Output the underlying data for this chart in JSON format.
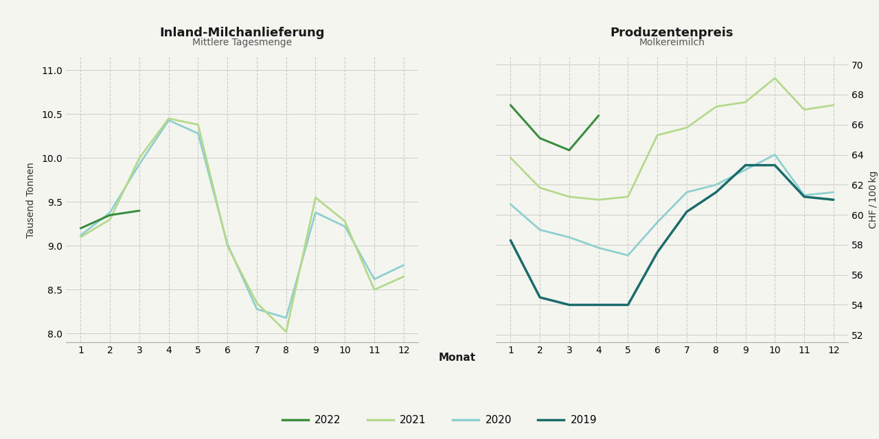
{
  "left_title": "Inland-Milchanlieferung",
  "left_subtitle": "Mittlere Tagesmenge",
  "right_title": "Produzentenpreis",
  "right_subtitle": "Molkereimilch",
  "xlabel": "Monat",
  "left_ylabel": "Tausend Tonnen",
  "right_ylabel": "CHF / 100 kg",
  "left_ylim": [
    7.9,
    11.15
  ],
  "left_yticks": [
    8.0,
    8.5,
    9.0,
    9.5,
    10.0,
    10.5,
    11.0
  ],
  "right_ylim": [
    51.5,
    70.5
  ],
  "right_yticks": [
    52,
    54,
    56,
    58,
    60,
    62,
    64,
    66,
    68,
    70
  ],
  "months": [
    1,
    2,
    3,
    4,
    5,
    6,
    7,
    8,
    9,
    10,
    11,
    12
  ],
  "left_series": {
    "2022": {
      "months": [
        1,
        2,
        3
      ],
      "values": [
        9.2,
        9.35,
        9.4
      ],
      "color": "#3a8c3f",
      "linewidth": 2.2
    },
    "2021": {
      "months": [
        1,
        2,
        3,
        4,
        5,
        6,
        7,
        8,
        9,
        10,
        11,
        12
      ],
      "values": [
        9.1,
        9.3,
        10.0,
        10.45,
        10.38,
        9.0,
        8.35,
        8.02,
        9.55,
        9.28,
        8.5,
        8.65
      ],
      "color": "#b5d98a",
      "linewidth": 2.0
    },
    "2020": {
      "months": [
        1,
        2,
        3,
        4,
        5,
        6,
        7,
        8,
        9,
        10,
        11,
        12
      ],
      "values": [
        9.12,
        9.38,
        9.93,
        10.43,
        10.28,
        9.02,
        8.28,
        8.18,
        9.38,
        9.22,
        8.62,
        8.78
      ],
      "color": "#8ecfcf",
      "linewidth": 2.0
    }
  },
  "right_series": {
    "2022": {
      "months": [
        1,
        2,
        3,
        4
      ],
      "values": [
        67.3,
        65.1,
        64.3,
        66.6
      ],
      "color": "#3a8c3f",
      "linewidth": 2.2
    },
    "2021": {
      "months": [
        1,
        2,
        3,
        4,
        5,
        6,
        7,
        8,
        9,
        10,
        11,
        12
      ],
      "values": [
        63.8,
        61.8,
        61.2,
        61.0,
        61.2,
        65.3,
        65.8,
        67.2,
        67.5,
        69.1,
        67.0,
        67.3
      ],
      "color": "#b5d98a",
      "linewidth": 2.0
    },
    "2020": {
      "months": [
        1,
        2,
        3,
        4,
        5,
        6,
        7,
        8,
        9,
        10,
        11,
        12
      ],
      "values": [
        60.7,
        59.0,
        58.5,
        57.8,
        57.3,
        59.5,
        61.5,
        62.0,
        63.0,
        64.0,
        61.3,
        61.5
      ],
      "color": "#8ecfcf",
      "linewidth": 2.0
    },
    "2019": {
      "months": [
        1,
        2,
        3,
        4,
        5,
        6,
        7,
        8,
        9,
        10,
        11,
        12
      ],
      "values": [
        58.3,
        54.5,
        54.0,
        54.0,
        54.0,
        57.5,
        60.2,
        61.5,
        63.3,
        63.3,
        61.2,
        61.0
      ],
      "color": "#1a6b6b",
      "linewidth": 2.5
    }
  },
  "legend_labels": [
    "2022",
    "2021",
    "2020",
    "2019"
  ],
  "legend_colors": [
    "#3a8c3f",
    "#b5d98a",
    "#8ecfcf",
    "#1a6b6b"
  ],
  "background_color": "#f5f5f0",
  "plot_bg_color": "#f5f5f0",
  "grid_color": "#cccccc",
  "spine_color": "#aaaaaa"
}
